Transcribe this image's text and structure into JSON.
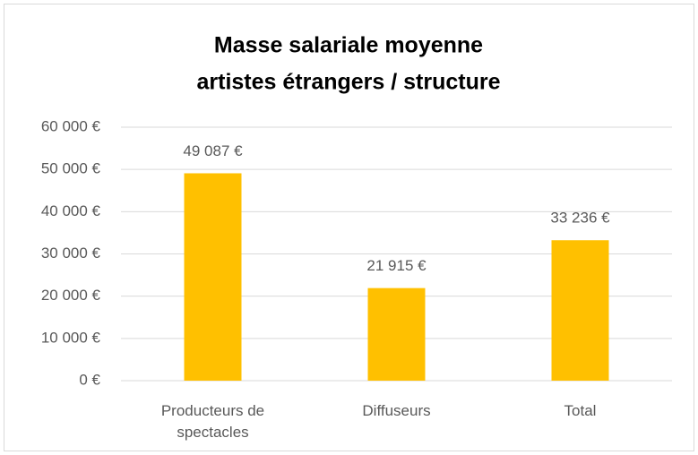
{
  "chart_data": {
    "type": "bar",
    "title": [
      "Masse salariale moyenne",
      "artistes étrangers / structure"
    ],
    "categories": [
      "Producteurs de spectacles",
      "Diffuseurs",
      "Total"
    ],
    "values": [
      49087,
      21915,
      33236
    ],
    "value_labels": [
      "49 087 €",
      "21 915 €",
      "33 236 €"
    ],
    "color": "#FFC000",
    "ylim": [
      0,
      60000
    ],
    "yticks": [
      {
        "value": 0,
        "label": "0 €"
      },
      {
        "value": 10000,
        "label": "10 000 €"
      },
      {
        "value": 20000,
        "label": "20 000 €"
      },
      {
        "value": 30000,
        "label": "30 000 €"
      },
      {
        "value": 40000,
        "label": "40 000 €"
      },
      {
        "value": 50000,
        "label": "50 000 €"
      },
      {
        "value": 60000,
        "label": "60 000 €"
      }
    ],
    "grid": true
  }
}
